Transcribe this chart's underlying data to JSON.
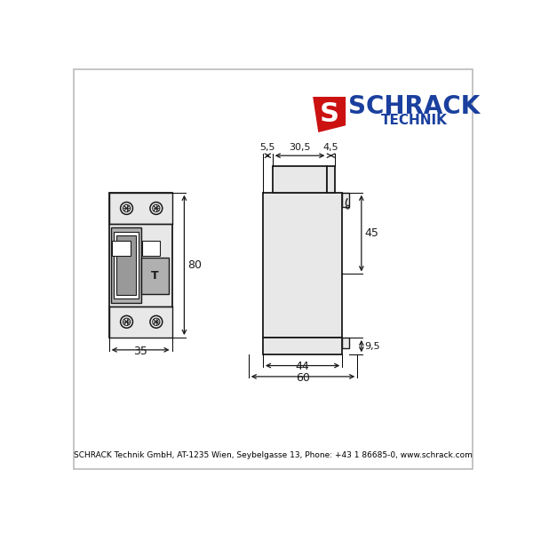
{
  "bg_color": "#ffffff",
  "border_color": "#bbbbbb",
  "line_color": "#1a1a1a",
  "fill_light": "#e8e8e8",
  "fill_gray": "#999999",
  "fill_mid": "#b0b0b0",
  "logo_blue": "#1a3f9e",
  "logo_red": "#cc1111",
  "schrack_text": "SCHRACK",
  "technik_text": "TECHNIK",
  "footer_text": "SCHRACK Technik GmbH, AT-1235 Wien, Seybelgasse 13, Phone: +43 1 86685-0, www.schrack.com",
  "dim_35": "35",
  "dim_80": "80",
  "dim_44": "44",
  "dim_60": "60",
  "dim_55": "5,5",
  "dim_305": "30,5",
  "dim_45t": "4,5",
  "dim_45r": "45",
  "dim_95": "9,5"
}
